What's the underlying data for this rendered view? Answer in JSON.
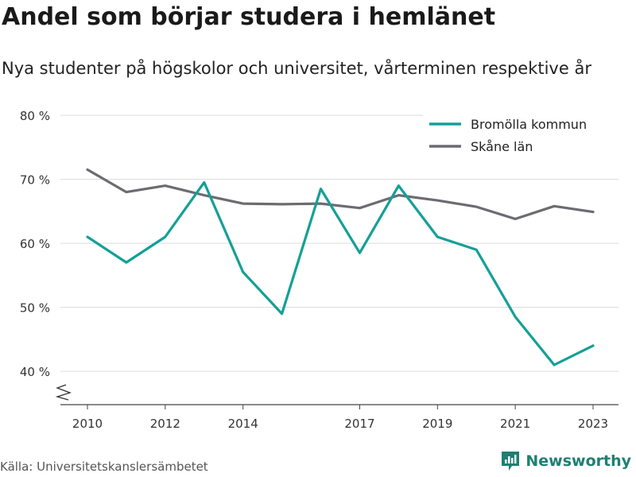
{
  "header": {
    "title": "Andel som börjar studera i hemlänet",
    "subtitle": "Nya studenter på högskolor och universitet, vårterminen respektive år"
  },
  "footer": {
    "source": "Källa: Universitetskanslersämbetet",
    "brand": "Newsworthy"
  },
  "chart_data": {
    "type": "line",
    "x": [
      2010,
      2011,
      2012,
      2013,
      2014,
      2015,
      2016,
      2017,
      2018,
      2019,
      2020,
      2021,
      2022,
      2023
    ],
    "x_ticks": [
      "2010",
      "2012",
      "2014",
      "2017",
      "2019",
      "2021",
      "2023"
    ],
    "y_ticks": [
      "80 %",
      "70 %",
      "60 %",
      "50 %",
      "40 %"
    ],
    "ylim": [
      35,
      80
    ],
    "grid": true,
    "legend_position": "top-right",
    "series": [
      {
        "name": "Bromölla kommun",
        "color": "#14a096",
        "values": [
          61,
          57,
          61,
          69.5,
          55.5,
          49,
          68.5,
          58.5,
          69,
          61,
          59,
          48.5,
          41,
          44
        ]
      },
      {
        "name": "Skåne län",
        "color": "#6d6b72",
        "values": [
          71.5,
          68,
          69,
          67.5,
          66.2,
          66.1,
          66.2,
          65.5,
          67.5,
          66.7,
          65.7,
          63.8,
          65.8,
          64.9
        ]
      }
    ]
  }
}
